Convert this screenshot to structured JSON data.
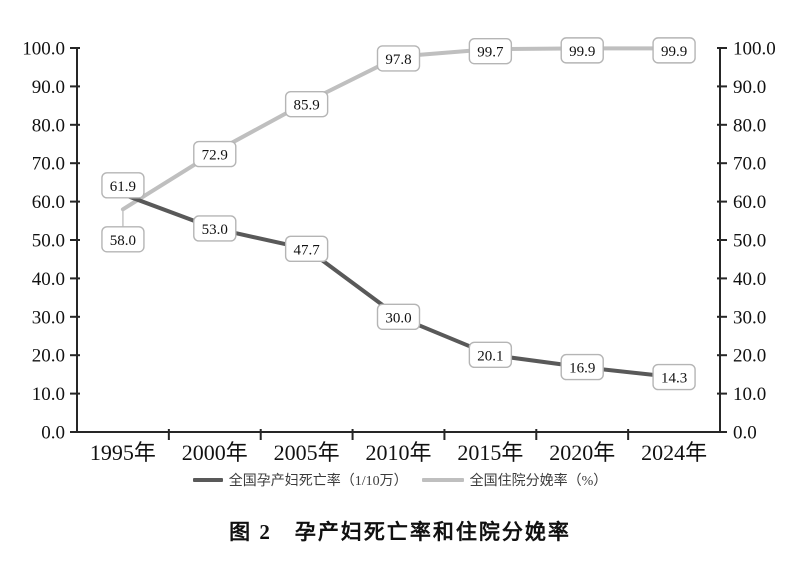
{
  "chart_data": {
    "type": "line",
    "title": "图 2　孕产妇死亡率和住院分娩率",
    "categories": [
      "1995年",
      "2000年",
      "2005年",
      "2010年",
      "2015年",
      "2020年",
      "2024年"
    ],
    "series": [
      {
        "name": "全国孕产妇死亡率（1/10万）",
        "values": [
          61.9,
          53.0,
          47.7,
          30.0,
          20.1,
          16.9,
          14.3
        ],
        "color": "#595959"
      },
      {
        "name": "全国住院分娩率（%）",
        "values": [
          58.0,
          72.9,
          85.9,
          97.8,
          99.7,
          99.9,
          99.9
        ],
        "color": "#bfbfbf"
      }
    ],
    "ylim": [
      0,
      100
    ],
    "yticks": [
      "0.0",
      "10.0",
      "20.0",
      "30.0",
      "40.0",
      "50.0",
      "60.0",
      "70.0",
      "80.0",
      "90.0",
      "100.0"
    ],
    "dual_axis": true,
    "grid": false,
    "data_labels": true,
    "legend_position": "bottom",
    "label_box": {
      "fill": "#ffffff",
      "border": "#b5b5b5"
    },
    "axis_color": "#262626",
    "label_offsets": [
      [
        [
          0,
          -9
        ],
        [
          0,
          0
        ],
        [
          0,
          0
        ],
        [
          0,
          0
        ],
        [
          0,
          0
        ],
        [
          0,
          0
        ],
        [
          0,
          0
        ]
      ],
      [
        [
          0,
          30
        ],
        [
          0,
          2
        ],
        [
          0,
          2
        ],
        [
          0,
          2
        ],
        [
          0,
          2
        ],
        [
          0,
          2
        ],
        [
          0,
          2
        ]
      ]
    ],
    "leaders": [
      {
        "series": 1,
        "index": 0
      }
    ]
  }
}
